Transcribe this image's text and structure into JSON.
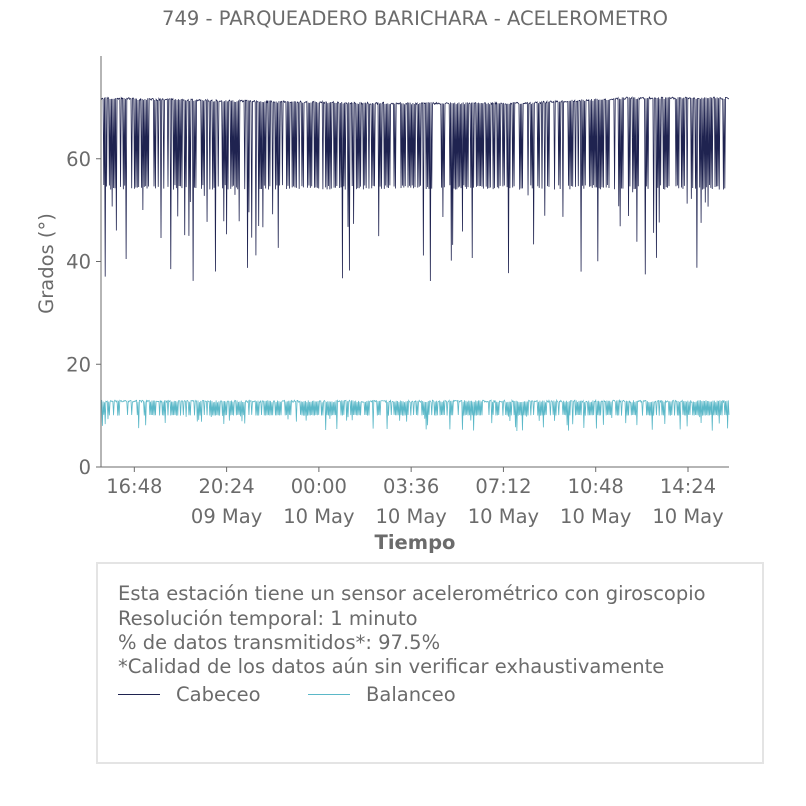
{
  "chart_data": {
    "type": "line",
    "title": "749 - PARQUEADERO BARICHARA - ACELEROMETRO",
    "xlabel": "Tiempo",
    "ylabel": "Grados (°)",
    "ylim": [
      0,
      80
    ],
    "xlim": [
      "2023-05-09 15:30",
      "2023-05-10 16:00"
    ],
    "yticks": [
      0,
      20,
      40,
      60
    ],
    "xticks": [
      {
        "time": "2023-05-09 16:48",
        "label": "16:48",
        "sublabel": ""
      },
      {
        "time": "2023-05-09 20:24",
        "label": "20:24",
        "sublabel": "09 May"
      },
      {
        "time": "2023-05-10 00:00",
        "label": "00:00",
        "sublabel": "10 May"
      },
      {
        "time": "2023-05-10 03:36",
        "label": "03:36",
        "sublabel": "10 May"
      },
      {
        "time": "2023-05-10 07:12",
        "label": "07:12",
        "sublabel": "10 May"
      },
      {
        "time": "2023-05-10 10:48",
        "label": "10:48",
        "sublabel": "10 May"
      },
      {
        "time": "2023-05-10 14:24",
        "label": "14:24",
        "sublabel": "10 May"
      }
    ],
    "series": [
      {
        "name": "Cabeceo",
        "color": "#1f2350",
        "x": [
          "2023-05-09 15:30",
          "2023-05-09 20:00",
          "2023-05-10 02:00",
          "2023-05-10 08:00",
          "2023-05-10 12:00",
          "2023-05-10 16:00"
        ],
        "y_upper": [
          72,
          71.5,
          71,
          71,
          72,
          72
        ],
        "y_lower_typical": [
          54,
          54,
          54,
          54,
          54,
          54
        ],
        "y_min": [
          36,
          36,
          36,
          36,
          36,
          36
        ]
      },
      {
        "name": "Balanceo",
        "color": "#5bb8c8",
        "x": [
          "2023-05-09 15:30",
          "2023-05-10 16:00"
        ],
        "y_upper": [
          13,
          13
        ],
        "y_lower_typical": [
          10,
          10
        ],
        "y_min": [
          7,
          7
        ]
      }
    ],
    "grid": false,
    "legend": "below"
  },
  "notes": [
    "Esta estación tiene un sensor acelerométrico con giroscopio",
    "Resolución temporal: 1 minuto",
    "% de datos transmitidos*: 97.5%",
    "*Calidad de los datos aún sin verificar exhaustivamente"
  ]
}
